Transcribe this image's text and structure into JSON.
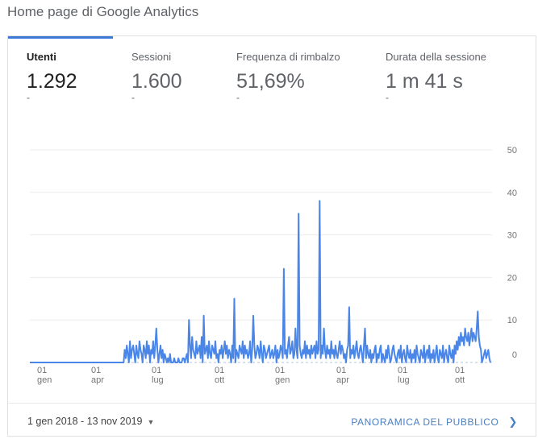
{
  "header": {
    "title": "Home page di Google Analytics"
  },
  "metrics": [
    {
      "label": "Utenti",
      "value": "1.292",
      "delta": "-",
      "active": true
    },
    {
      "label": "Sessioni",
      "value": "1.600",
      "delta": "-",
      "active": false
    },
    {
      "label": "Frequenza di rimbalzo",
      "value": "51,69%",
      "delta": "-",
      "active": false
    },
    {
      "label": "Durata della sessione",
      "value": "1 m 41 s",
      "delta": "-",
      "active": false
    }
  ],
  "footer": {
    "date_range": "1 gen 2018 - 13 nov 2019",
    "date_range_icon": "caret-down-icon",
    "report_link": "PANORAMICA DEL PUBBLICO",
    "report_link_icon": "chevron-right-icon"
  },
  "colors": {
    "accent": "#3c78d8",
    "line": "#4a86e8",
    "link": "#4a7fc1"
  },
  "chart_data": {
    "type": "line",
    "y_ticks": [
      "50",
      "40",
      "30",
      "20",
      "10",
      "0"
    ],
    "ylim": [
      0,
      50
    ],
    "x_ticks": [
      {
        "day": "01",
        "month": "gen"
      },
      {
        "day": "01",
        "month": "apr"
      },
      {
        "day": "01",
        "month": "lug"
      },
      {
        "day": "01",
        "month": "ott"
      },
      {
        "day": "01",
        "month": "gen"
      },
      {
        "day": "01",
        "month": "apr"
      },
      {
        "day": "01",
        "month": "lug"
      },
      {
        "day": "01",
        "month": "ott"
      }
    ],
    "grid": true,
    "series": [
      {
        "values": [
          0,
          0,
          0,
          0,
          0,
          0,
          0,
          0,
          0,
          0,
          0,
          0,
          0,
          0,
          0,
          0,
          0,
          0,
          0,
          0,
          0,
          0,
          0,
          0,
          0,
          0,
          0,
          0,
          0,
          0,
          0,
          0,
          0,
          0,
          0,
          0,
          0,
          0,
          0,
          0,
          0,
          0,
          0,
          0,
          0,
          0,
          0,
          0,
          0,
          0,
          0,
          0,
          0,
          0,
          0,
          0,
          0,
          0,
          0,
          0,
          0,
          0,
          0,
          0,
          0,
          0,
          0,
          0,
          0,
          0,
          0,
          0,
          0,
          0,
          0,
          0,
          0,
          0,
          0,
          0,
          0,
          0,
          0,
          0,
          0,
          0,
          0,
          0,
          0,
          0,
          3,
          1,
          4,
          2,
          0,
          5,
          1,
          3,
          4,
          2,
          0,
          4,
          2,
          1,
          5,
          3,
          2,
          0,
          4,
          3,
          1,
          5,
          2,
          4,
          0,
          3,
          2,
          5,
          1,
          4,
          8,
          3,
          0,
          2,
          4,
          1,
          3,
          0,
          2,
          1,
          0,
          1,
          0,
          2,
          0,
          0,
          0,
          1,
          0,
          0,
          0,
          1,
          0,
          0,
          0,
          1,
          1,
          0,
          1,
          2,
          0,
          10,
          4,
          1,
          6,
          3,
          2,
          1,
          5,
          2,
          3,
          4,
          1,
          6,
          0,
          11,
          2,
          3,
          4,
          1,
          5,
          2,
          1,
          4,
          3,
          2,
          5,
          1,
          2,
          0,
          3,
          2,
          4,
          1,
          3,
          5,
          2,
          4,
          1,
          3,
          2,
          0,
          4,
          1,
          15,
          0,
          3,
          2,
          1,
          4,
          3,
          2,
          5,
          1,
          4,
          2,
          3,
          1,
          2,
          5,
          0,
          3,
          11,
          4,
          1,
          2,
          4,
          3,
          1,
          5,
          2,
          0,
          4,
          3,
          1,
          2,
          3,
          4,
          1,
          2,
          3,
          1,
          2,
          4,
          0,
          3,
          1,
          2,
          4,
          3,
          1,
          22,
          2,
          3,
          1,
          4,
          6,
          2,
          3,
          5,
          1,
          2,
          8,
          3,
          1,
          35,
          4,
          2,
          1,
          3,
          2,
          5,
          1,
          4,
          2,
          3,
          1,
          4,
          2,
          3,
          4,
          1,
          5,
          2,
          3,
          38,
          1,
          4,
          2,
          8,
          3,
          1,
          4,
          2,
          3,
          1,
          5,
          2,
          3,
          1,
          4,
          2,
          1,
          3,
          5,
          2,
          4,
          3,
          1,
          2,
          0,
          3,
          4,
          13,
          1,
          3,
          2,
          4,
          1,
          3,
          5,
          2,
          1,
          3,
          4,
          2,
          0,
          4,
          8,
          1,
          4,
          2,
          1,
          3,
          0,
          2,
          1,
          3,
          4,
          0,
          2,
          1,
          3,
          4,
          0,
          2,
          1,
          0,
          3,
          1,
          4,
          2,
          0,
          1,
          3,
          4,
          2,
          1,
          0,
          2,
          3,
          1,
          4,
          0,
          2,
          3,
          1,
          0,
          4,
          2,
          1,
          3,
          0,
          2,
          1,
          3,
          0,
          4,
          2,
          1,
          0,
          3,
          2,
          1,
          4,
          0,
          2,
          3,
          1,
          4,
          0,
          2,
          1,
          3,
          0,
          2,
          4,
          1,
          0,
          3,
          2,
          1,
          4,
          0,
          2,
          3,
          1,
          0,
          4,
          2,
          1,
          3,
          0,
          4,
          2,
          5,
          3,
          6,
          4,
          7,
          5,
          6,
          4,
          8,
          6,
          5,
          7,
          4,
          6,
          8,
          5,
          7,
          6,
          5,
          8,
          12,
          6,
          4,
          3,
          0,
          1,
          2,
          3,
          1,
          2,
          3,
          1,
          0
        ]
      }
    ]
  }
}
